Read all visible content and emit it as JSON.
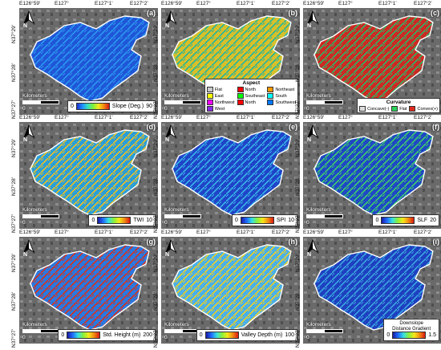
{
  "coords": {
    "lon": [
      "E126°59'",
      "E127°",
      "E127°1'",
      "E127°2'"
    ],
    "lat": [
      "N37°29'",
      "N37°28'",
      "N37°27'"
    ]
  },
  "scale_text": "Kilometers",
  "scale_zero": "0",
  "panels": [
    {
      "id": "a",
      "label": "(a)",
      "kind": "colorbar",
      "title": "Slope (Deg.)",
      "min": "0",
      "max": "90",
      "gradient": "linear-gradient(to right,#1a2fd0,#1f8cff,#35e0c0,#7bf03a,#f6e81a,#f28a12,#d91a12)",
      "fill": "#1f56d8",
      "texture": "#2b9af0"
    },
    {
      "id": "b",
      "label": "(b)",
      "kind": "aspect",
      "legend_title": "Aspect",
      "legend": [
        {
          "name": "Flat",
          "color": "#c8c8c8"
        },
        {
          "name": "North",
          "color": "#ff0000"
        },
        {
          "name": "Northeast",
          "color": "#ff9a00"
        },
        {
          "name": "East",
          "color": "#ffff00"
        },
        {
          "name": "Southeast",
          "color": "#00ff00"
        },
        {
          "name": "South",
          "color": "#00ffff"
        },
        {
          "name": "Northwest",
          "color": "#ff00ff"
        },
        {
          "name": "North",
          "color": "#ff0000"
        },
        {
          "name": "Southwest",
          "color": "#0078ff"
        },
        {
          "name": "West",
          "color": "#8a2be2"
        }
      ],
      "fill": "#d8c02a",
      "texture": "#1fb5a0"
    },
    {
      "id": "c",
      "label": "(c)",
      "kind": "curvature",
      "legend_title": "Curvature",
      "legend": [
        {
          "name": "Concave(-)",
          "color": "#dcdcdc"
        },
        {
          "name": "Flat",
          "color": "#2bd35a"
        },
        {
          "name": "Convex(+)",
          "color": "#e02a20"
        }
      ],
      "fill": "#cc2a22",
      "texture": "#2bb86a"
    },
    {
      "id": "d",
      "label": "(d)",
      "kind": "colorbar",
      "title": "TWI",
      "min": "0",
      "max": "10",
      "gradient": "linear-gradient(to right,#1a1aa0,#1f6cff,#35e0e0,#8af03a,#f6e81a,#f28a12,#d91a12)",
      "fill": "#2a9fd8",
      "texture": "#f0c020"
    },
    {
      "id": "e",
      "label": "(e)",
      "kind": "colorbar",
      "title": "SPI",
      "min": "0",
      "max": "10",
      "gradient": "linear-gradient(to right,#1a1aa0,#1f6cff,#35e0e0,#8af03a,#f6e81a,#f28a12,#d91a12)",
      "fill": "#1f44c8",
      "texture": "#38b7e8"
    },
    {
      "id": "f",
      "label": "(f)",
      "kind": "colorbar",
      "title": "SLF",
      "min": "0",
      "max": "20",
      "gradient": "linear-gradient(to right,#1a1aa0,#1f6cff,#35e0e0,#8af03a,#f6e81a,#f28a12,#d91a12)",
      "fill": "#1f48c4",
      "texture": "#3fd06a"
    },
    {
      "id": "g",
      "label": "(g)",
      "kind": "colorbar",
      "title": "Std. Height (m)",
      "min": "0",
      "max": "200",
      "gradient": "linear-gradient(to right,#1a1aa0,#1f6cff,#35e0e0,#8af03a,#f6e81a,#f28a12,#d91a12)",
      "fill": "#2a78e0",
      "texture": "#d93018"
    },
    {
      "id": "h",
      "label": "(h)",
      "kind": "colorbar",
      "title": "Valley Depth (m)",
      "min": "0",
      "max": "100",
      "gradient": "linear-gradient(to right,#1a1aa0,#1f6cff,#35e0e0,#8af03a,#f6e81a,#f28a12,#d91a12)",
      "fill": "#4ab0e8",
      "texture": "#f0d020"
    },
    {
      "id": "i",
      "label": "(i)",
      "kind": "colorbar",
      "title": "Downslope Distance Gradient",
      "title_lines": [
        "Downslope",
        "Distance Gradient"
      ],
      "min": "0",
      "max": "1.5",
      "gradient": "linear-gradient(to right,#1a1aa0,#1f6cff,#35e0e0,#8af03a,#f6e81a,#f28a12,#d91a12)",
      "fill": "#1e40c0",
      "texture": "#3aa8e0"
    }
  ]
}
